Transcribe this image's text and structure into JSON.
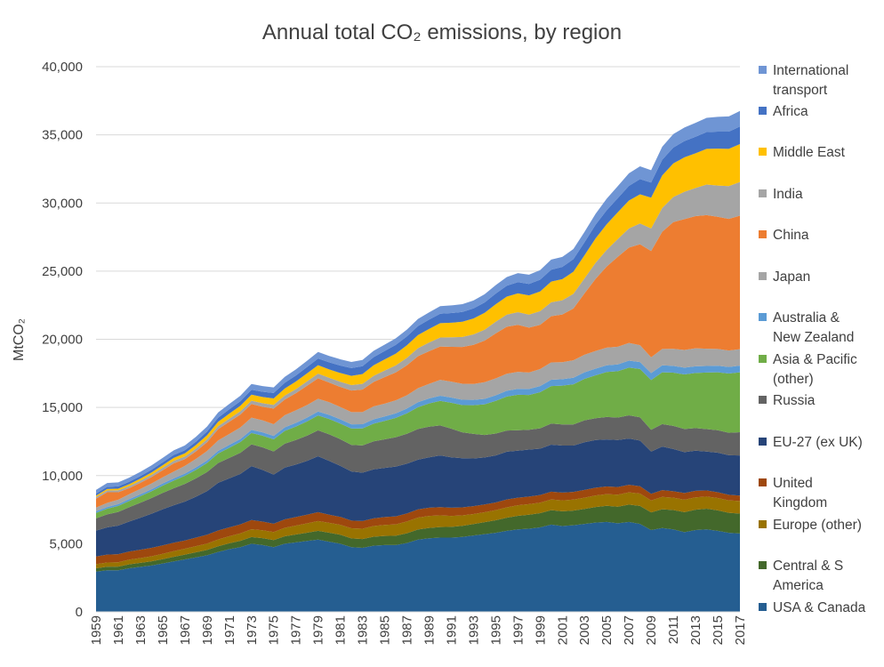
{
  "chart_data": {
    "type": "area",
    "stacked": true,
    "title": "Annual total CO₂ emissions, by region",
    "ylabel": "MtCO₂",
    "xlabel": "",
    "ylim": [
      0,
      40000
    ],
    "y_ticks": [
      "0",
      "5,000",
      "10,000",
      "15,000",
      "20,000",
      "25,000",
      "30,000",
      "35,000",
      "40,000"
    ],
    "y_tick_values": [
      0,
      5000,
      10000,
      15000,
      20000,
      25000,
      30000,
      35000,
      40000
    ],
    "x_tick_labels": [
      "1959",
      "1961",
      "1963",
      "1965",
      "1967",
      "1969",
      "1971",
      "1973",
      "1975",
      "1977",
      "1979",
      "1981",
      "1983",
      "1985",
      "1987",
      "1989",
      "1991",
      "1993",
      "1995",
      "1997",
      "1999",
      "2001",
      "2003",
      "2005",
      "2007",
      "2009",
      "2011",
      "2013",
      "2015",
      "2017"
    ],
    "grid": true,
    "legend_position": "right",
    "x": [
      1959,
      1960,
      1961,
      1962,
      1963,
      1964,
      1965,
      1966,
      1967,
      1968,
      1969,
      1970,
      1971,
      1972,
      1973,
      1974,
      1975,
      1976,
      1977,
      1978,
      1979,
      1980,
      1981,
      1982,
      1983,
      1984,
      1985,
      1986,
      1987,
      1988,
      1989,
      1990,
      1991,
      1992,
      1993,
      1994,
      1995,
      1996,
      1997,
      1998,
      1999,
      2000,
      2001,
      2002,
      2003,
      2004,
      2005,
      2006,
      2007,
      2008,
      2009,
      2010,
      2011,
      2012,
      2013,
      2014,
      2015,
      2016,
      2017
    ],
    "series": [
      {
        "name": "USA & Canada",
        "color": "#255e91",
        "values": [
          2950,
          3050,
          3050,
          3200,
          3300,
          3400,
          3550,
          3700,
          3850,
          4000,
          4150,
          4400,
          4600,
          4750,
          5000,
          4900,
          4750,
          5000,
          5100,
          5200,
          5300,
          5150,
          5000,
          4750,
          4700,
          4850,
          4900,
          4900,
          5050,
          5300,
          5400,
          5450,
          5450,
          5500,
          5600,
          5700,
          5800,
          5950,
          6050,
          6100,
          6200,
          6400,
          6300,
          6350,
          6450,
          6550,
          6600,
          6500,
          6600,
          6450,
          6000,
          6150,
          6050,
          5850,
          6000,
          6050,
          5950,
          5800,
          5750
        ]
      },
      {
        "name": "Central & S America",
        "color": "#43682b",
        "values": [
          250,
          260,
          270,
          290,
          300,
          310,
          320,
          340,
          350,
          370,
          390,
          410,
          430,
          460,
          490,
          510,
          520,
          550,
          580,
          610,
          650,
          660,
          660,
          640,
          640,
          660,
          670,
          690,
          720,
          740,
          760,
          770,
          790,
          810,
          840,
          880,
          920,
          960,
          1000,
          1030,
          1040,
          1060,
          1080,
          1080,
          1100,
          1140,
          1180,
          1220,
          1270,
          1320,
          1300,
          1380,
          1420,
          1470,
          1500,
          1520,
          1500,
          1470,
          1460
        ]
      },
      {
        "name": "Europe (other)",
        "color": "#997300",
        "values": [
          300,
          310,
          320,
          340,
          350,
          370,
          390,
          410,
          430,
          450,
          470,
          500,
          520,
          550,
          570,
          580,
          590,
          620,
          650,
          680,
          710,
          720,
          730,
          740,
          760,
          790,
          810,
          830,
          860,
          880,
          880,
          860,
          800,
          770,
          740,
          730,
          740,
          760,
          770,
          770,
          770,
          790,
          800,
          810,
          830,
          850,
          860,
          880,
          900,
          910,
          870,
          900,
          910,
          910,
          900,
          890,
          900,
          910,
          920
        ]
      },
      {
        "name": "United Kingdom",
        "color": "#9e480e",
        "values": [
          560,
          580,
          590,
          600,
          610,
          620,
          620,
          620,
          610,
          630,
          650,
          660,
          650,
          660,
          680,
          630,
          610,
          620,
          630,
          640,
          660,
          600,
          580,
          570,
          560,
          560,
          580,
          590,
          590,
          600,
          600,
          600,
          600,
          590,
          580,
          570,
          570,
          580,
          560,
          560,
          560,
          570,
          570,
          560,
          570,
          570,
          560,
          560,
          550,
          540,
          490,
          500,
          470,
          490,
          480,
          450,
          430,
          410,
          400
        ]
      },
      {
        "name": "EU-27 (ex UK)",
        "color": "#264478",
        "values": [
          1900,
          2000,
          2100,
          2200,
          2350,
          2500,
          2650,
          2750,
          2850,
          3000,
          3200,
          3500,
          3600,
          3700,
          3950,
          3800,
          3600,
          3800,
          3850,
          3950,
          4100,
          3950,
          3750,
          3600,
          3550,
          3600,
          3600,
          3650,
          3650,
          3650,
          3700,
          3800,
          3700,
          3600,
          3500,
          3450,
          3450,
          3500,
          3450,
          3450,
          3400,
          3450,
          3450,
          3400,
          3500,
          3500,
          3450,
          3450,
          3400,
          3350,
          3100,
          3200,
          3100,
          3000,
          2950,
          2850,
          2900,
          2900,
          2950
        ]
      },
      {
        "name": "Russia",
        "color": "#636363",
        "values": [
          900,
          950,
          1000,
          1050,
          1100,
          1150,
          1200,
          1250,
          1300,
          1350,
          1400,
          1450,
          1500,
          1550,
          1600,
          1650,
          1700,
          1750,
          1800,
          1850,
          1900,
          1950,
          1950,
          1950,
          2000,
          2050,
          2100,
          2150,
          2200,
          2250,
          2250,
          2200,
          2100,
          1900,
          1800,
          1650,
          1600,
          1550,
          1500,
          1450,
          1500,
          1550,
          1550,
          1550,
          1600,
          1600,
          1650,
          1650,
          1700,
          1700,
          1600,
          1650,
          1700,
          1700,
          1650,
          1650,
          1650,
          1650,
          1700
        ]
      },
      {
        "name": "Asia & Pacific (other)",
        "color": "#70ad47",
        "values": [
          400,
          420,
          440,
          460,
          480,
          500,
          530,
          560,
          590,
          620,
          660,
          700,
          740,
          790,
          830,
          860,
          890,
          940,
          990,
          1040,
          1090,
          1120,
          1150,
          1200,
          1250,
          1300,
          1350,
          1420,
          1500,
          1600,
          1700,
          1800,
          1900,
          2000,
          2100,
          2250,
          2400,
          2500,
          2600,
          2550,
          2650,
          2750,
          2850,
          2950,
          3050,
          3150,
          3300,
          3400,
          3500,
          3550,
          3650,
          3800,
          3900,
          4000,
          4050,
          4150,
          4250,
          4350,
          4400
        ]
      },
      {
        "name": "Australia & New Zealand",
        "color": "#5b9bd5",
        "values": [
          120,
          125,
          130,
          135,
          140,
          150,
          160,
          165,
          170,
          180,
          190,
          200,
          210,
          220,
          230,
          240,
          250,
          260,
          270,
          280,
          290,
          300,
          305,
          310,
          310,
          320,
          330,
          340,
          350,
          360,
          370,
          380,
          385,
          390,
          395,
          400,
          410,
          420,
          430,
          440,
          450,
          460,
          470,
          480,
          480,
          490,
          490,
          500,
          510,
          510,
          510,
          510,
          500,
          500,
          490,
          480,
          480,
          480,
          490
        ]
      },
      {
        "name": "Japan",
        "color": "#a5a5a5",
        "values": [
          270,
          300,
          330,
          360,
          390,
          420,
          450,
          500,
          560,
          620,
          690,
          760,
          800,
          850,
          900,
          880,
          860,
          890,
          920,
          920,
          940,
          930,
          910,
          900,
          890,
          940,
          940,
          950,
          970,
          1030,
          1070,
          1160,
          1170,
          1180,
          1170,
          1220,
          1240,
          1250,
          1250,
          1210,
          1240,
          1270,
          1250,
          1280,
          1290,
          1290,
          1300,
          1290,
          1300,
          1240,
          1160,
          1200,
          1250,
          1300,
          1320,
          1270,
          1230,
          1210,
          1200
        ]
      },
      {
        "name": "China",
        "color": "#ed7d31",
        "values": [
          650,
          780,
          550,
          450,
          450,
          470,
          520,
          600,
          500,
          560,
          650,
          830,
          900,
          950,
          1000,
          1000,
          1150,
          1150,
          1250,
          1420,
          1500,
          1450,
          1470,
          1580,
          1650,
          1800,
          1950,
          2050,
          2200,
          2350,
          2400,
          2450,
          2550,
          2700,
          2870,
          3050,
          3300,
          3450,
          3450,
          3300,
          3250,
          3400,
          3500,
          3800,
          4500,
          5300,
          5950,
          6600,
          7000,
          7400,
          7800,
          8600,
          9300,
          9600,
          9700,
          9800,
          9700,
          9650,
          9800
        ]
      },
      {
        "name": "India",
        "color": "#a5a5a5",
        "values": [
          130,
          130,
          140,
          150,
          160,
          170,
          180,
          190,
          190,
          200,
          220,
          220,
          230,
          240,
          250,
          260,
          270,
          290,
          300,
          320,
          340,
          350,
          380,
          400,
          420,
          450,
          480,
          510,
          550,
          590,
          630,
          660,
          700,
          730,
          760,
          800,
          860,
          890,
          930,
          950,
          1000,
          1020,
          1040,
          1080,
          1100,
          1170,
          1220,
          1310,
          1400,
          1530,
          1650,
          1740,
          1840,
          2000,
          2060,
          2240,
          2290,
          2410,
          2470
        ]
      },
      {
        "name": "Middle East",
        "color": "#ffc000",
        "values": [
          100,
          110,
          120,
          140,
          150,
          170,
          190,
          210,
          230,
          260,
          290,
          320,
          360,
          400,
          440,
          460,
          470,
          520,
          560,
          590,
          620,
          610,
          640,
          680,
          720,
          770,
          810,
          870,
          920,
          960,
          1000,
          1050,
          1070,
          1120,
          1170,
          1240,
          1280,
          1320,
          1380,
          1410,
          1450,
          1510,
          1550,
          1620,
          1700,
          1800,
          1880,
          1960,
          2050,
          2140,
          2260,
          2390,
          2460,
          2530,
          2550,
          2620,
          2710,
          2730,
          2780
        ]
      },
      {
        "name": "Africa",
        "color": "#4472c4",
        "values": [
          150,
          160,
          170,
          180,
          190,
          200,
          210,
          220,
          230,
          250,
          270,
          300,
          320,
          340,
          360,
          380,
          400,
          420,
          440,
          460,
          490,
          520,
          550,
          570,
          580,
          600,
          620,
          640,
          650,
          660,
          680,
          700,
          710,
          720,
          740,
          760,
          780,
          800,
          820,
          840,
          860,
          880,
          900,
          920,
          950,
          1000,
          1030,
          1040,
          1080,
          1110,
          1110,
          1150,
          1170,
          1190,
          1210,
          1230,
          1250,
          1270,
          1290
        ]
      },
      {
        "name": "International transport",
        "color": "#6f95d4",
        "values": [
          270,
          280,
          290,
          300,
          310,
          320,
          330,
          340,
          350,
          360,
          370,
          380,
          390,
          400,
          420,
          420,
          410,
          430,
          450,
          460,
          480,
          470,
          460,
          450,
          450,
          460,
          470,
          480,
          500,
          520,
          530,
          550,
          560,
          570,
          580,
          600,
          620,
          640,
          660,
          680,
          700,
          740,
          730,
          740,
          760,
          800,
          850,
          880,
          920,
          940,
          910,
          960,
          990,
          1000,
          1020,
          1050,
          1080,
          1110,
          1140
        ]
      }
    ]
  }
}
